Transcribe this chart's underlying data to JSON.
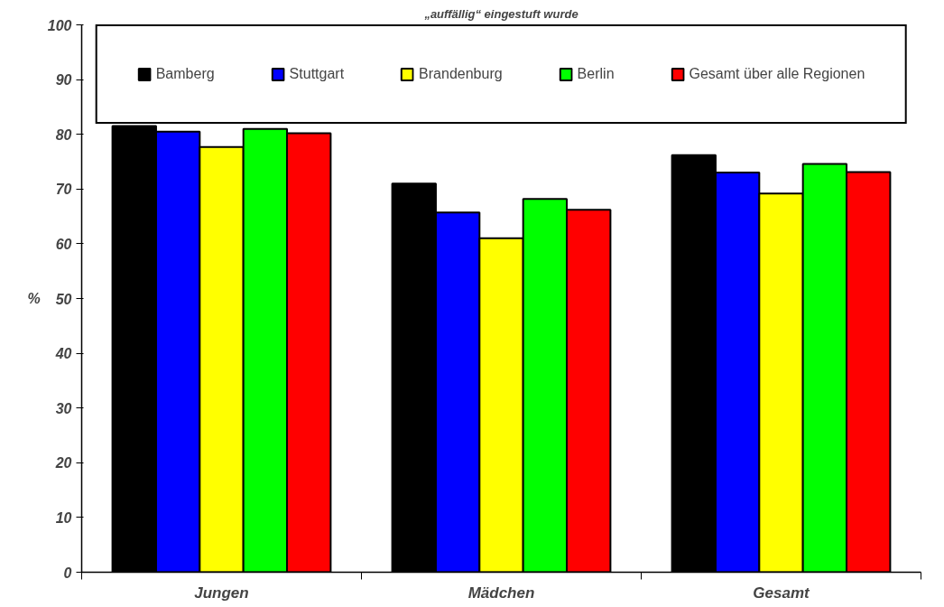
{
  "chart_data": {
    "type": "bar",
    "title": "„auffällig“ eingestuft wurde",
    "ylabel": "%",
    "categories": [
      "Jungen",
      "Mädchen",
      "Gesamt"
    ],
    "series": [
      {
        "name": "Bamberg",
        "color": "#000000",
        "values": [
          81.5,
          71.0,
          76.2
        ]
      },
      {
        "name": "Stuttgart",
        "color": "#0000ff",
        "values": [
          80.5,
          65.7,
          73.0
        ]
      },
      {
        "name": "Brandenburg",
        "color": "#ffff00",
        "values": [
          77.7,
          61.0,
          69.2
        ]
      },
      {
        "name": "Berlin",
        "color": "#00ff00",
        "values": [
          81.0,
          68.2,
          74.6
        ]
      },
      {
        "name": "Gesamt über alle Regionen",
        "color": "#ff0000",
        "values": [
          80.2,
          66.2,
          73.1
        ]
      }
    ],
    "ylim": [
      0,
      100
    ],
    "yticks": [
      0,
      10,
      20,
      30,
      40,
      50,
      60,
      70,
      80,
      90,
      100
    ],
    "grid": false,
    "legend": "top"
  }
}
